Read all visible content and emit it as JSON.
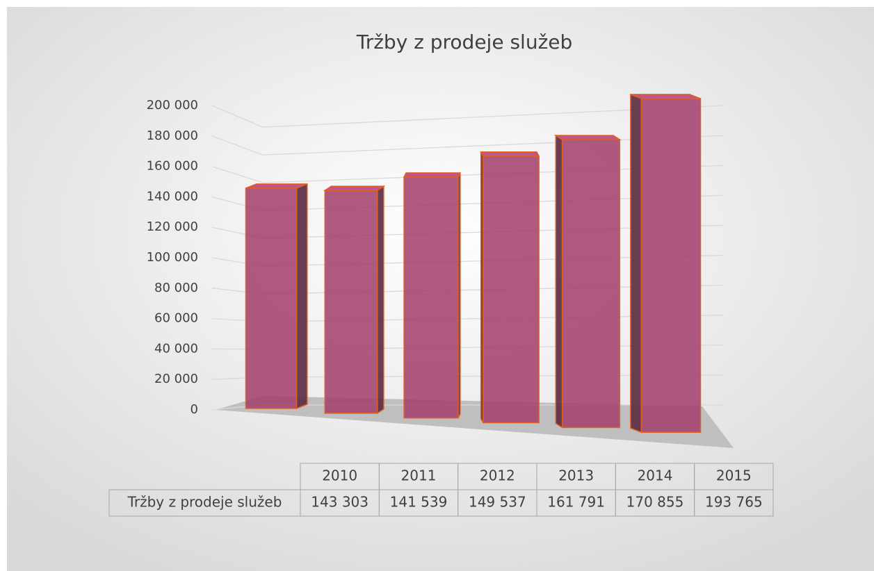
{
  "chart_data": {
    "type": "bar",
    "title": "Tržby z prodeje služeb",
    "categories": [
      "2010",
      "2011",
      "2012",
      "2013",
      "2014",
      "2015"
    ],
    "series": [
      {
        "name": "Tržby z prodeje služeb",
        "color": "#a23d6c",
        "values": [
          143303,
          141539,
          149537,
          161791,
          170855,
          193765
        ],
        "value_labels": [
          "143 303",
          "141 539",
          "149 537",
          "161 791",
          "170 855",
          "193 765"
        ]
      }
    ],
    "ylim": [
      0,
      200000
    ],
    "yticks": [
      0,
      {
        "value": 20000,
        "label": "20 000"
      },
      {
        "value": 40000,
        "label": "40 000"
      },
      {
        "value": 60000,
        "label": "60 000"
      },
      {
        "value": 80000,
        "label": "80 000"
      },
      {
        "value": 100000,
        "label": "100 000"
      },
      {
        "value": 120000,
        "label": "120 000"
      },
      {
        "value": 140000,
        "label": "140 000"
      },
      {
        "value": 160000,
        "label": "160 000"
      },
      {
        "value": 180000,
        "label": "180 000"
      },
      {
        "value": 200000,
        "label": "200 000"
      }
    ],
    "grid": true,
    "data_table": true
  }
}
